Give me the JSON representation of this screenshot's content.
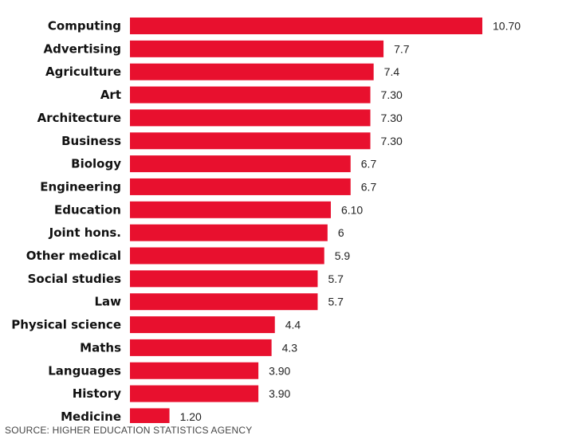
{
  "chart_data": {
    "type": "bar",
    "orientation": "horizontal",
    "categories": [
      "Computing",
      "Advertising",
      "Agriculture",
      "Art",
      "Architecture",
      "Business",
      "Biology",
      "Engineering",
      "Education",
      "Joint hons.",
      "Other medical",
      "Social studies",
      "Law",
      "Physical science",
      "Maths",
      "Languages",
      "History",
      "Medicine"
    ],
    "values": [
      10.7,
      7.7,
      7.4,
      7.3,
      7.3,
      7.3,
      6.7,
      6.7,
      6.1,
      6,
      5.9,
      5.7,
      5.7,
      4.4,
      4.3,
      3.9,
      3.9,
      1.2
    ],
    "value_labels": [
      "10.70",
      "7.7",
      "7.4",
      "7.30",
      "7.30",
      "7.30",
      "6.7",
      "6.7",
      "6.10",
      "6",
      "5.9",
      "5.7",
      "5.7",
      "4.4",
      "4.3",
      "3.90",
      "3.90",
      "1.20"
    ],
    "xlim": [
      0,
      10.7
    ],
    "grid": false,
    "bar_color": "#e8102e"
  },
  "source": "SOURCE: HIGHER EDUCATION STATISTICS AGENCY"
}
